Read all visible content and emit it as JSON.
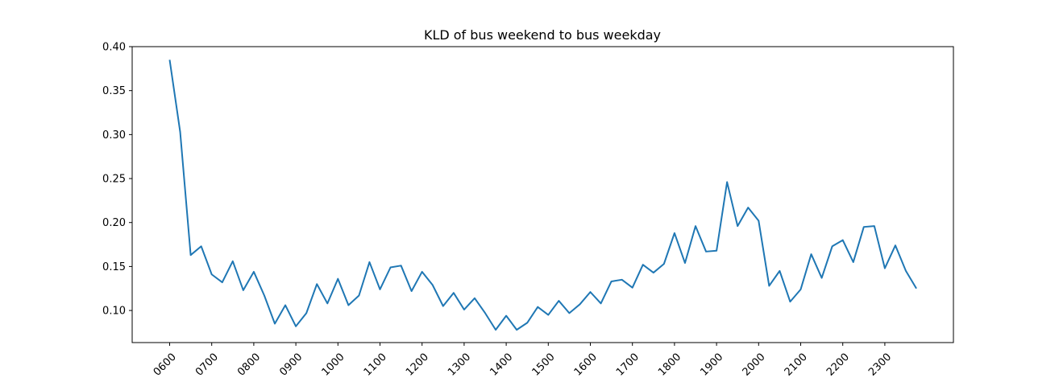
{
  "chart_data": {
    "type": "line",
    "title": "KLD of bus weekend to bus weekday",
    "xlabel": "",
    "ylabel": "",
    "ylim": [
      0.0635,
      0.4
    ],
    "yticks": [
      0.1,
      0.15,
      0.2,
      0.25,
      0.3,
      0.35,
      0.4
    ],
    "ytick_labels": [
      "0.10",
      "0.15",
      "0.20",
      "0.25",
      "0.30",
      "0.35",
      "0.40"
    ],
    "x_categories": [
      "0600",
      "0615",
      "0630",
      "0645",
      "0700",
      "0715",
      "0730",
      "0745",
      "0800",
      "0815",
      "0830",
      "0845",
      "0900",
      "0915",
      "0930",
      "0945",
      "1000",
      "1015",
      "1030",
      "1045",
      "1100",
      "1115",
      "1130",
      "1145",
      "1200",
      "1215",
      "1230",
      "1245",
      "1300",
      "1315",
      "1330",
      "1345",
      "1400",
      "1415",
      "1430",
      "1445",
      "1500",
      "1515",
      "1530",
      "1545",
      "1600",
      "1615",
      "1630",
      "1645",
      "1700",
      "1715",
      "1730",
      "1745",
      "1800",
      "1815",
      "1830",
      "1845",
      "1900",
      "1915",
      "1930",
      "1945",
      "2000",
      "2015",
      "2030",
      "2045",
      "2100",
      "2115",
      "2130",
      "2145",
      "2200",
      "2215",
      "2230",
      "2245",
      "2300",
      "2315",
      "2330",
      "2345"
    ],
    "xtick_labels": [
      "0600",
      "0700",
      "0800",
      "0900",
      "1000",
      "1100",
      "1200",
      "1300",
      "1400",
      "1500",
      "1600",
      "1700",
      "1800",
      "1900",
      "2000",
      "2100",
      "2200",
      "2300"
    ],
    "grid": false,
    "series": [
      {
        "color": "#1f77b4",
        "values": [
          0.385,
          0.303,
          0.163,
          0.173,
          0.141,
          0.132,
          0.156,
          0.123,
          0.144,
          0.117,
          0.085,
          0.106,
          0.082,
          0.097,
          0.13,
          0.108,
          0.136,
          0.106,
          0.117,
          0.155,
          0.124,
          0.149,
          0.151,
          0.122,
          0.144,
          0.129,
          0.105,
          0.12,
          0.101,
          0.114,
          0.097,
          0.078,
          0.094,
          0.078,
          0.086,
          0.104,
          0.095,
          0.111,
          0.097,
          0.107,
          0.121,
          0.108,
          0.133,
          0.135,
          0.126,
          0.152,
          0.143,
          0.153,
          0.188,
          0.154,
          0.196,
          0.167,
          0.168,
          0.246,
          0.196,
          0.217,
          0.202,
          0.128,
          0.145,
          0.11,
          0.124,
          0.164,
          0.137,
          0.173,
          0.18,
          0.155,
          0.195,
          0.196,
          0.148,
          0.174,
          0.145,
          0.125
        ]
      }
    ]
  }
}
